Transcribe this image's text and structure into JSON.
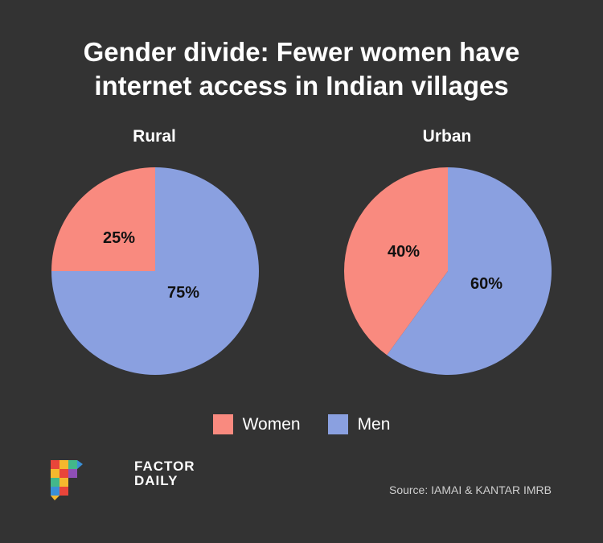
{
  "title_lines": [
    "Gender divide: Fewer women have",
    "internet access in Indian villages"
  ],
  "chart_data": [
    {
      "type": "pie",
      "title": "Rural",
      "series": [
        {
          "name": "Women",
          "value": 25,
          "label": "25%",
          "color": "#f98a7f"
        },
        {
          "name": "Men",
          "value": 75,
          "label": "75%",
          "color": "#8aa0e0"
        }
      ]
    },
    {
      "type": "pie",
      "title": "Urban",
      "series": [
        {
          "name": "Women",
          "value": 40,
          "label": "40%",
          "color": "#f98a7f"
        },
        {
          "name": "Men",
          "value": 60,
          "label": "60%",
          "color": "#8aa0e0"
        }
      ]
    }
  ],
  "legend": [
    {
      "label": "Women",
      "color": "#f98a7f"
    },
    {
      "label": "Men",
      "color": "#8aa0e0"
    }
  ],
  "brand": {
    "line1": "FACTOR",
    "line2": "DAILY"
  },
  "source": "Source: IAMAI & KANTAR IMRB"
}
